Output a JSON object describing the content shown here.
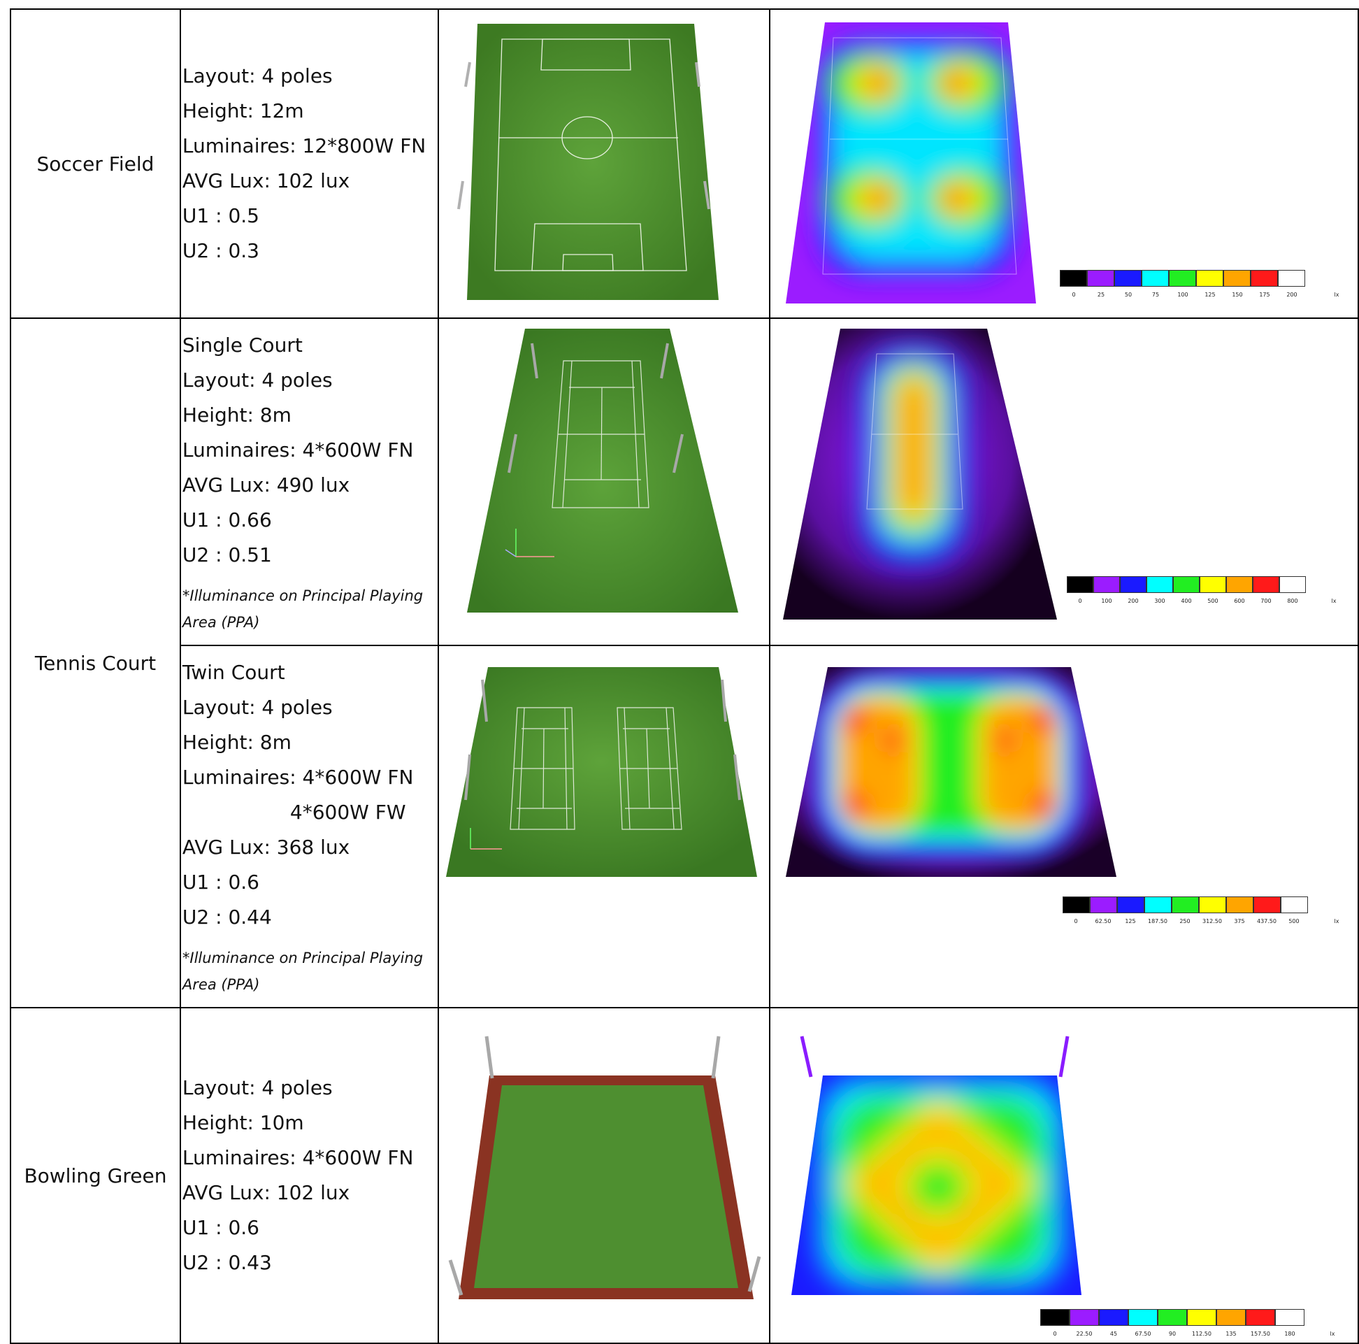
{
  "rows": [
    {
      "name": "Soccer Field",
      "lines": [
        "Layout: 4 poles",
        "Height: 12m",
        "Luminaires: 12*800W FN",
        "AVG Lux: 102 lux",
        "U1 : 0.5",
        "U2 : 0.3"
      ],
      "note": "",
      "legend": {
        "ticks": [
          "0",
          "25",
          "50",
          "75",
          "100",
          "125",
          "150",
          "175",
          "200"
        ],
        "unit": "lx"
      }
    },
    {
      "name": "Tennis Court",
      "sub": [
        {
          "lines": [
            "Single Court",
            "Layout: 4 poles",
            "Height: 8m",
            "Luminaires: 4*600W FN",
            "AVG Lux: 490 lux",
            "U1 : 0.66",
            "U2 : 0.51"
          ],
          "note": "*Illuminance on Principal Playing Area (PPA)",
          "legend": {
            "ticks": [
              "0",
              "100",
              "200",
              "300",
              "400",
              "500",
              "600",
              "700",
              "800"
            ],
            "unit": "lx"
          }
        },
        {
          "lines": [
            "Twin Court",
            "Layout: 4 poles",
            "Height: 8m",
            "Luminaires: 4*600W FN",
            "4*600W FW",
            "AVG Lux: 368 lux",
            "U1 : 0.6",
            "U2 : 0.44"
          ],
          "note": "*Illuminance on Principal Playing Area (PPA)",
          "legend": {
            "ticks": [
              "0",
              "62.50",
              "125",
              "187.50",
              "250",
              "312.50",
              "375",
              "437.50",
              "500"
            ],
            "unit": "lx"
          }
        }
      ]
    },
    {
      "name": "Bowling Green",
      "lines": [
        "Layout: 4 poles",
        "Height: 10m",
        "Luminaires: 4*600W FN",
        "AVG Lux: 102 lux",
        "U1 : 0.6",
        "U2 : 0.43"
      ],
      "note": "",
      "legend": {
        "ticks": [
          "0",
          "22.50",
          "45",
          "67.50",
          "90",
          "112.50",
          "135",
          "157.50",
          "180"
        ],
        "unit": "lx"
      }
    }
  ],
  "legend_colors": [
    "#000000",
    "#9b1cff",
    "#1a1aff",
    "#00ffff",
    "#22ee22",
    "#ffff00",
    "#ffa500",
    "#ff1a1a",
    "#ffffff"
  ]
}
